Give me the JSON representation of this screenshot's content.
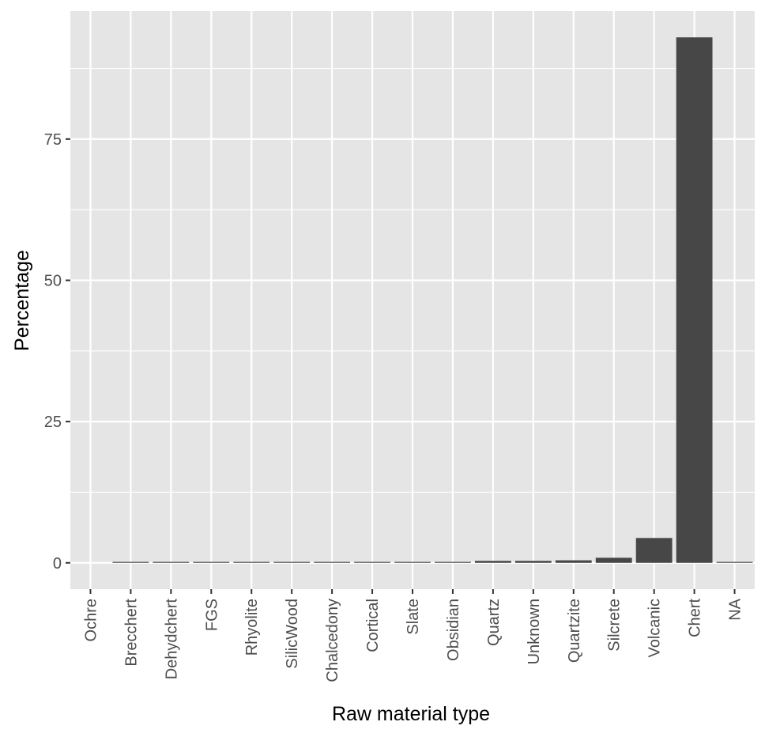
{
  "chart_data": {
    "type": "bar",
    "title": "",
    "xlabel": "Raw material type",
    "ylabel": "Percentage",
    "categories": [
      "Ochre",
      "Brecchert",
      "Dehydchert",
      "FGS",
      "Rhyolite",
      "SilicWood",
      "Chalcedony",
      "Cortical",
      "Slate",
      "Obsidian",
      "Quartz",
      "Unknown",
      "Quartzite",
      "Silcrete",
      "Volcanic",
      "Chert",
      "NA"
    ],
    "values": [
      0.0,
      0.02,
      0.02,
      0.02,
      0.03,
      0.03,
      0.04,
      0.05,
      0.06,
      0.15,
      0.35,
      0.35,
      0.45,
      0.9,
      4.4,
      93.0,
      0.03
    ],
    "ylim": [
      -4.65,
      97.65
    ],
    "yticks": [
      0,
      25,
      50,
      75
    ],
    "ytick_labels": [
      "0",
      "25",
      "50",
      "75"
    ],
    "grid": true,
    "legend": "none",
    "colors": {
      "bar": "#474747",
      "panel": "#e5e5e5",
      "grid": "#ffffff",
      "tick_text": "#4d4d4d",
      "title_text": "#000000"
    }
  }
}
